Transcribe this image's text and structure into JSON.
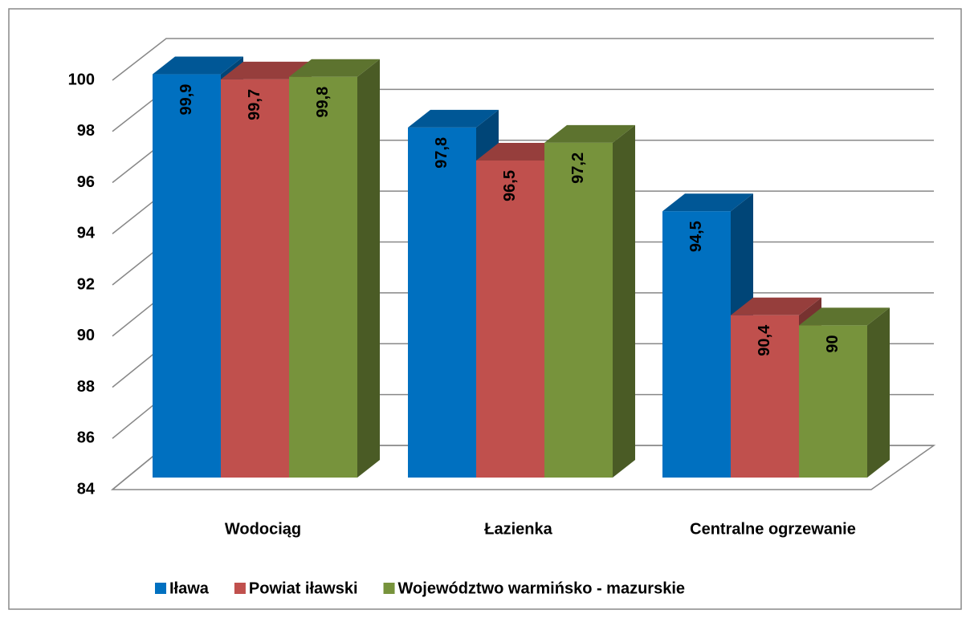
{
  "chart_data": {
    "type": "bar3d",
    "categories": [
      "Wodociąg",
      "Łazienka",
      "Centralne ogrzewanie"
    ],
    "series": [
      {
        "name": "Iława",
        "color": "#0070c0",
        "values": [
          99.9,
          97.8,
          94.5
        ],
        "value_labels": [
          "99,9",
          "97,8",
          "94,5"
        ]
      },
      {
        "name": "Powiat iławski",
        "color": "#c0504d",
        "values": [
          99.7,
          96.5,
          90.4
        ],
        "value_labels": [
          "99,7",
          "96,5",
          "90,4"
        ]
      },
      {
        "name": "Województwo warmińsko - mazurskie",
        "color": "#77933c",
        "values": [
          99.8,
          97.2,
          90
        ],
        "value_labels": [
          "99,8",
          "97,2",
          "90"
        ]
      }
    ],
    "ylim": [
      84,
      100
    ],
    "yticks": [
      84,
      86,
      88,
      90,
      92,
      94,
      96,
      98,
      100
    ],
    "grid": true,
    "legend": "bottom"
  }
}
